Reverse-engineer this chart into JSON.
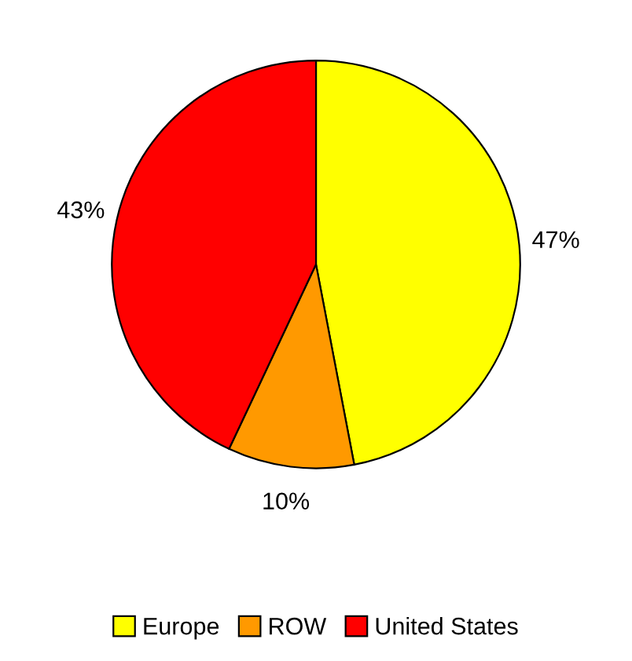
{
  "chart_data": {
    "type": "pie",
    "categories": [
      "Europe",
      "ROW",
      "United States"
    ],
    "values": [
      47,
      10,
      43
    ],
    "value_labels": [
      "47%",
      "10%",
      "43%"
    ],
    "colors": [
      "#ffff00",
      "#ff9900",
      "#ff0000"
    ],
    "legend": "bottom"
  }
}
